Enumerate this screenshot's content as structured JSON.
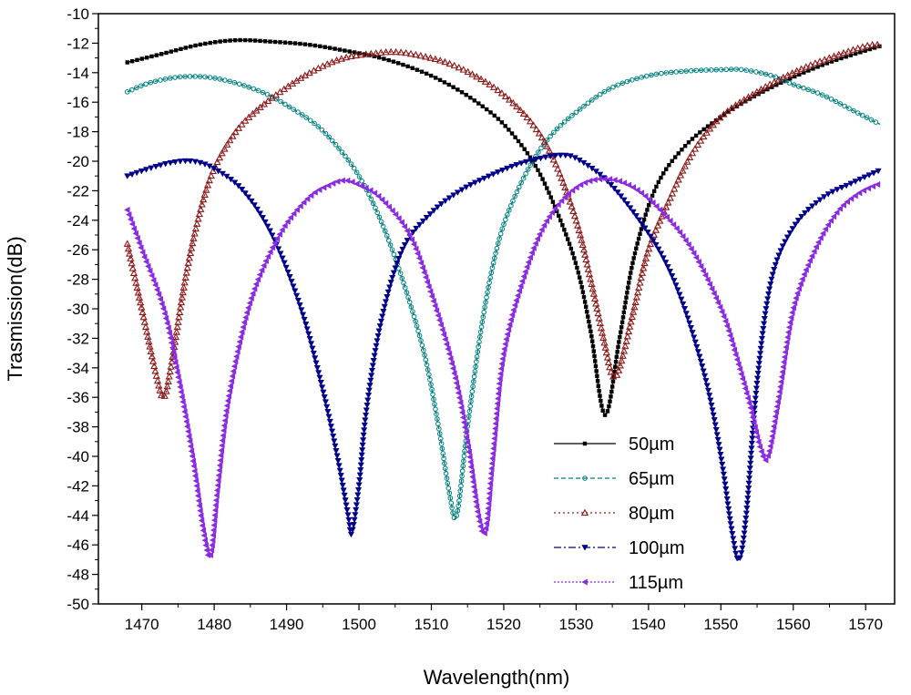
{
  "chart_data": {
    "type": "line",
    "title": "",
    "xlabel": "Wavelength(nm)",
    "ylabel": "Trasmission(dB)",
    "xlim": [
      1464,
      1574
    ],
    "ylim": [
      -50,
      -10
    ],
    "xticks": [
      1470,
      1480,
      1490,
      1500,
      1510,
      1520,
      1530,
      1540,
      1550,
      1560,
      1570
    ],
    "yticks": [
      -10,
      -12,
      -14,
      -16,
      -18,
      -20,
      -22,
      -24,
      -26,
      -28,
      -30,
      -32,
      -34,
      -36,
      -38,
      -40,
      -42,
      -44,
      -46,
      -48,
      -50
    ],
    "grid": false,
    "legend_position": "bottom-center",
    "series": [
      {
        "name": "50µm",
        "color": "#000000",
        "marker": "square",
        "x": [
          1468,
          1473,
          1478,
          1483,
          1488,
          1493,
          1498,
          1503,
          1508,
          1512,
          1516,
          1520,
          1524,
          1527,
          1530,
          1532,
          1534,
          1536,
          1538,
          1541,
          1545,
          1550,
          1555,
          1560,
          1565,
          1570,
          1572
        ],
        "y": [
          -13.3,
          -12.7,
          -12.1,
          -11.8,
          -11.9,
          -12.1,
          -12.5,
          -13.0,
          -13.8,
          -14.7,
          -15.9,
          -17.5,
          -20.0,
          -23.0,
          -27.0,
          -31.5,
          -37.2,
          -32.0,
          -26.5,
          -21.8,
          -19.0,
          -17.0,
          -15.5,
          -14.3,
          -13.3,
          -12.5,
          -12.2
        ]
      },
      {
        "name": "65µm",
        "color": "#008080",
        "marker": "circle",
        "x": [
          1468,
          1471,
          1475,
          1479,
          1483,
          1487,
          1490,
          1494,
          1497,
          1500,
          1503,
          1506,
          1509,
          1511,
          1512.5,
          1513.5,
          1515,
          1517,
          1519,
          1521,
          1524,
          1527,
          1531,
          1535,
          1540,
          1545,
          1550,
          1553,
          1557,
          1560,
          1564,
          1568,
          1572
        ],
        "y": [
          -15.3,
          -14.7,
          -14.3,
          -14.3,
          -14.7,
          -15.4,
          -16.2,
          -17.5,
          -19.0,
          -21.0,
          -24.0,
          -28.0,
          -33.0,
          -38.0,
          -42.5,
          -44.0,
          -38.0,
          -31.0,
          -26.0,
          -23.0,
          -20.0,
          -18.0,
          -16.3,
          -15.0,
          -14.2,
          -13.9,
          -13.8,
          -13.8,
          -14.2,
          -14.8,
          -15.5,
          -16.5,
          -17.5
        ]
      },
      {
        "name": "80µm",
        "color": "#8b1a1a",
        "marker": "triangle-up",
        "x": [
          1468,
          1470,
          1472,
          1473,
          1474,
          1476,
          1478,
          1480,
          1483,
          1486,
          1490,
          1494,
          1498,
          1502,
          1505,
          1508,
          1512,
          1516,
          1520,
          1524,
          1527,
          1530,
          1532,
          1534,
          1535,
          1536,
          1538,
          1540,
          1543,
          1546,
          1550,
          1555,
          1560,
          1565,
          1570,
          1572
        ],
        "y": [
          -25.6,
          -30.0,
          -34.5,
          -36.0,
          -34.0,
          -28.0,
          -23.5,
          -20.5,
          -18.0,
          -16.5,
          -15.0,
          -13.8,
          -13.0,
          -12.7,
          -12.6,
          -12.8,
          -13.3,
          -14.2,
          -15.5,
          -17.5,
          -20.0,
          -24.0,
          -28.0,
          -32.5,
          -34.5,
          -34.0,
          -30.0,
          -26.0,
          -22.5,
          -19.5,
          -17.0,
          -15.3,
          -14.0,
          -13.0,
          -12.2,
          -12.1
        ]
      },
      {
        "name": "100µm",
        "color": "#00008b",
        "marker": "triangle-down",
        "x": [
          1468,
          1471,
          1474,
          1477,
          1480,
          1484,
          1488,
          1492,
          1495,
          1497,
          1498.5,
          1499,
          1500,
          1501,
          1503,
          1506,
          1510,
          1514,
          1518,
          1522,
          1526,
          1528,
          1530,
          1534,
          1538,
          1542,
          1545,
          1548,
          1550,
          1551.5,
          1552.5,
          1553.5,
          1555,
          1557,
          1560,
          1564,
          1568,
          1572
        ],
        "y": [
          -21.0,
          -20.5,
          -20.1,
          -20.0,
          -20.5,
          -22.0,
          -25.0,
          -30.0,
          -35.5,
          -40.0,
          -44.0,
          -45.2,
          -42.0,
          -37.0,
          -31.0,
          -26.0,
          -23.5,
          -22.0,
          -21.0,
          -20.2,
          -19.7,
          -19.6,
          -19.8,
          -21.2,
          -23.5,
          -26.5,
          -30.0,
          -35.0,
          -40.0,
          -45.0,
          -47.0,
          -44.0,
          -35.0,
          -28.0,
          -24.5,
          -22.5,
          -21.5,
          -20.6
        ]
      },
      {
        "name": "115µm",
        "color": "#8a2be2",
        "marker": "triangle-left",
        "x": [
          1468,
          1470,
          1473,
          1475,
          1477,
          1478.5,
          1479.5,
          1480.5,
          1482,
          1485,
          1489,
          1493,
          1496,
          1498,
          1500,
          1503,
          1507,
          1510,
          1513,
          1515,
          1516.5,
          1517.5,
          1518.5,
          1520,
          1523,
          1526,
          1530,
          1534,
          1538,
          1542,
          1546,
          1550,
          1552,
          1554,
          1555.5,
          1556.5,
          1558,
          1560,
          1563,
          1566,
          1569,
          1572
        ],
        "y": [
          -23.3,
          -26.0,
          -30.0,
          -34.5,
          -40.0,
          -45.0,
          -46.7,
          -42.0,
          -36.0,
          -29.5,
          -25.0,
          -22.5,
          -21.6,
          -21.3,
          -21.6,
          -22.5,
          -25.0,
          -29.0,
          -34.0,
          -39.0,
          -44.0,
          -45.0,
          -40.0,
          -33.0,
          -27.5,
          -24.0,
          -21.8,
          -21.2,
          -21.8,
          -23.5,
          -26.0,
          -30.0,
          -33.0,
          -36.5,
          -39.5,
          -40.0,
          -36.0,
          -30.0,
          -26.0,
          -23.5,
          -22.2,
          -21.5
        ]
      }
    ]
  }
}
